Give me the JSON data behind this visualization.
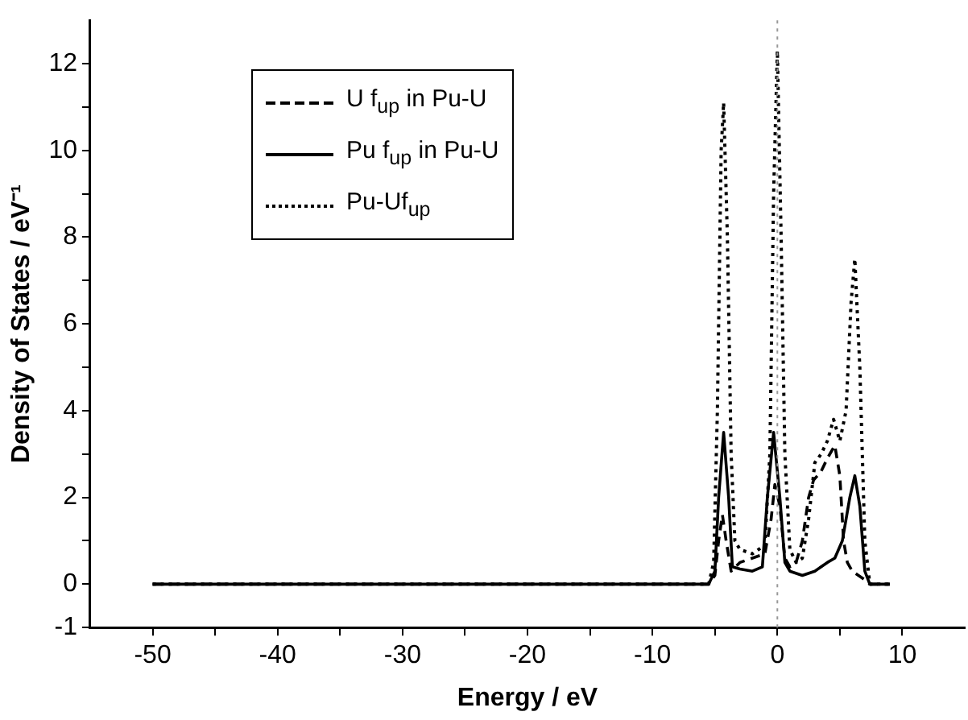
{
  "chart_data": {
    "type": "line",
    "xlabel": "Energy / eV",
    "ylabel": "Density of States / eV⁻¹",
    "xlim": [
      -55,
      15
    ],
    "xticks": [
      -50,
      {
        "value": -45,
        "label": null
      },
      -40,
      {
        "value": -35,
        "label": null
      },
      -30,
      {
        "value": -25,
        "label": null
      },
      -20,
      {
        "value": -15,
        "label": null
      },
      -10,
      {
        "value": -5,
        "label": null
      },
      0,
      {
        "value": 5,
        "label": null
      },
      10
    ],
    "ylim": [
      -1,
      13
    ],
    "yticks": [
      -1,
      0,
      {
        "value": 1,
        "label": null
      },
      2,
      {
        "value": 3,
        "label": null
      },
      4,
      {
        "value": 5,
        "label": null
      },
      6,
      {
        "value": 7,
        "label": null
      },
      8,
      {
        "value": 9,
        "label": null
      },
      10,
      {
        "value": 11,
        "label": null
      },
      12
    ],
    "legend": "top left",
    "grid": false,
    "marker": "none",
    "ref_lines": [
      {
        "axis": "x",
        "value": 0,
        "color": "#999999",
        "line_style": "dotted"
      }
    ],
    "series": [
      {
        "name": "U f$_{up}$ in Pu-U",
        "color": "#000000",
        "line_style": "dashed",
        "x": [
          -50,
          -5.5,
          -5,
          -4.7,
          -4.4,
          -4.1,
          -3.7,
          -3,
          -2,
          -1,
          -0.5,
          -0.2,
          0.2,
          0.6,
          1,
          1.5,
          2,
          2.5,
          2.9,
          3.5,
          4,
          4.6,
          5.0,
          5.3,
          5.6,
          6,
          7,
          7.4,
          9
        ],
        "values": [
          0,
          0,
          0.2,
          1,
          1.6,
          1,
          0.3,
          0.5,
          0.6,
          0.7,
          1.5,
          2.3,
          1.8,
          0.6,
          0.4,
          0.5,
          1,
          2,
          2.4,
          2.6,
          2.9,
          3.2,
          2.5,
          1,
          0.5,
          0.3,
          0.1,
          0,
          0
        ]
      },
      {
        "name": "Pu f$_{up}$ in Pu-U",
        "color": "#000000",
        "line_style": "solid",
        "x": [
          -50,
          -5.5,
          -5.0,
          -4.7,
          -4.3,
          -3.9,
          -3.6,
          -3,
          -2,
          -1.2,
          -0.8,
          -0.3,
          0.2,
          0.6,
          1,
          2,
          3,
          4,
          4.6,
          5.2,
          5.8,
          6.2,
          6.6,
          7.0,
          7.4,
          9
        ],
        "values": [
          0,
          0,
          0.3,
          2,
          3.5,
          2,
          0.4,
          0.35,
          0.3,
          0.4,
          2,
          3.5,
          2,
          0.5,
          0.3,
          0.2,
          0.3,
          0.5,
          0.6,
          1.0,
          2,
          2.5,
          1.8,
          0.3,
          0,
          0
        ]
      },
      {
        "name": "Pu-Uf$_{up}$",
        "color": "#000000",
        "line_style": "dotted",
        "x": [
          -50,
          -5.5,
          -5.1,
          -4.8,
          -4.5,
          -4.3,
          -4.0,
          -3.7,
          -3.4,
          -3,
          -2,
          -1,
          -0.6,
          -0.3,
          0,
          0.3,
          0.6,
          1,
          1.5,
          2,
          2.5,
          3,
          3.5,
          4,
          4.5,
          5,
          5.5,
          5.9,
          6.2,
          6.6,
          7,
          7.4,
          9
        ],
        "values": [
          0,
          0,
          0.5,
          4,
          10,
          11.1,
          8,
          3,
          1,
          0.8,
          0.7,
          0.9,
          3,
          9,
          12.3,
          8,
          3,
          0.8,
          0.5,
          0.6,
          1.5,
          2.8,
          3,
          3.3,
          3.8,
          3.3,
          4,
          6.5,
          7.5,
          5,
          1,
          0,
          0
        ]
      }
    ]
  }
}
